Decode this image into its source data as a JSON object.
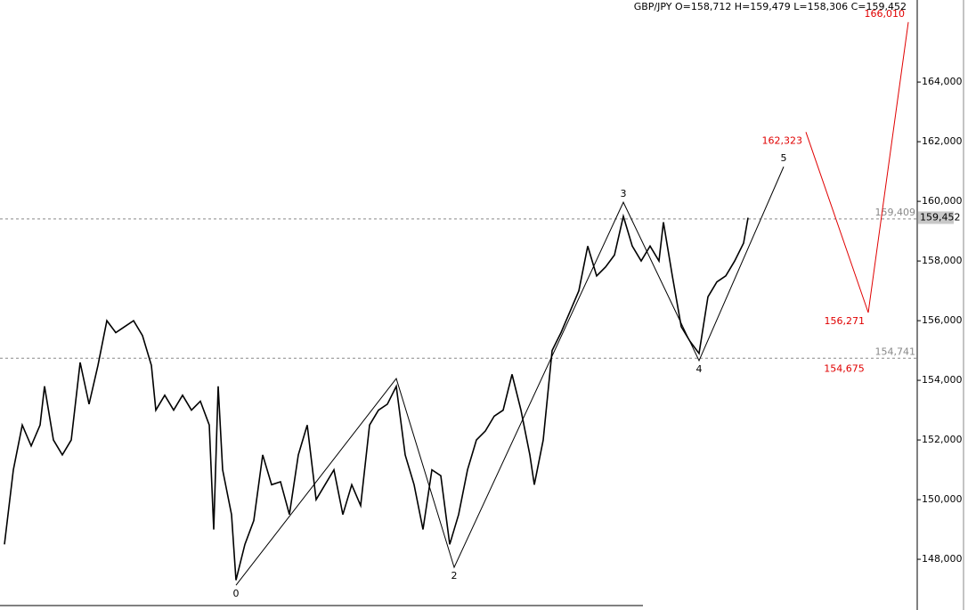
{
  "chart_data": {
    "type": "line",
    "title": "GBP/JPY O=158,712 H=159,479 L=158,306 C=159,452",
    "xlim": [
      0,
      206
    ],
    "ylim": [
      146.3,
      166.75
    ],
    "yticks": [
      {
        "value": 148,
        "label": "148,000"
      },
      {
        "value": 150,
        "label": "150,000"
      },
      {
        "value": 152,
        "label": "152,000"
      },
      {
        "value": 154,
        "label": "154,000"
      },
      {
        "value": 156,
        "label": "156,000"
      },
      {
        "value": 158,
        "label": "158,000"
      },
      {
        "value": 160,
        "label": "160,000"
      },
      {
        "value": 162,
        "label": "162,000"
      },
      {
        "value": 164,
        "label": "164,000"
      }
    ],
    "series": [
      {
        "color": "#000000",
        "x": [
          1,
          3,
          5,
          7,
          9,
          10,
          12,
          14,
          16,
          18,
          20,
          22,
          24,
          26,
          28,
          30,
          32,
          34,
          35,
          37,
          39,
          41,
          43,
          45,
          47,
          48,
          49,
          50,
          52,
          53,
          55,
          57,
          59,
          61,
          63,
          65,
          67,
          69,
          71,
          73,
          75,
          77,
          79,
          81,
          83,
          85,
          87,
          89,
          91,
          93,
          95,
          97,
          99,
          101,
          103,
          105,
          107,
          109,
          111,
          113,
          115,
          117,
          119,
          120,
          122,
          124,
          126,
          128,
          130,
          132,
          134,
          136,
          138,
          140,
          142,
          144,
          146,
          148,
          149,
          151,
          153,
          155,
          157,
          159,
          161,
          163,
          165,
          167,
          168
        ],
        "values": [
          148.5,
          151,
          152.5,
          151.8,
          152.5,
          153.8,
          152,
          151.5,
          152,
          154.6,
          153.2,
          154.5,
          156,
          155.6,
          155.8,
          156,
          155.5,
          154.5,
          153,
          153.5,
          153,
          153.5,
          153,
          153.3,
          152.5,
          149,
          153.8,
          151,
          149.5,
          147.3,
          148.5,
          149.3,
          151.5,
          150.5,
          150.6,
          149.5,
          151.5,
          152.5,
          150,
          150.5,
          151,
          149.5,
          150.5,
          149.8,
          152.5,
          153,
          153.2,
          153.8,
          151.5,
          150.5,
          149,
          151,
          150.8,
          148.5,
          149.5,
          151,
          152,
          152.3,
          152.8,
          153,
          154.2,
          153,
          151.5,
          150.5,
          152,
          155,
          155.6,
          156.3,
          157,
          158.5,
          157.5,
          157.8,
          158.2,
          159.5,
          158.5,
          158,
          158.5,
          158,
          159.3,
          157.5,
          155.8,
          155.3,
          154.9,
          156.8,
          157.3,
          157.5,
          158,
          158.6,
          159.45
        ]
      },
      {
        "color": "#000000",
        "x": [
          53,
          89,
          102,
          140,
          157,
          176
        ],
        "values": [
          147.13,
          154.06,
          147.73,
          159.97,
          154.66,
          161.16
        ],
        "value_labels": [
          "0",
          null,
          "2",
          "3",
          "4",
          "5"
        ]
      },
      {
        "color": "#e00000",
        "x": [
          181,
          195,
          204
        ],
        "values": [
          162.323,
          156.271,
          166.01
        ],
        "value_labels": [
          "162,323",
          "156,271",
          "166,010"
        ]
      }
    ],
    "levels": [
      {
        "value": 159.409,
        "label": "159,409"
      },
      {
        "value": 154.741,
        "label": "154,741"
      }
    ],
    "low_label": {
      "value": 154.675,
      "label": "154,675"
    },
    "last_price": {
      "value": 159.452,
      "label": "159,452"
    }
  }
}
